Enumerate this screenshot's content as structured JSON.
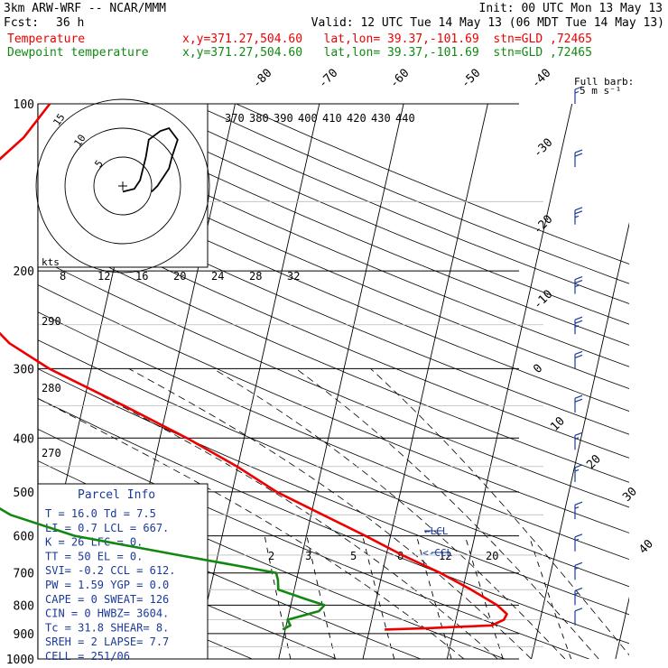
{
  "header": {
    "model": "3km ARW-WRF -- NCAR/MMM",
    "init": "Init: 00 UTC Mon 13 May 13",
    "fcst_label": "Fcst:",
    "fcst_value": "36 h",
    "valid": "Valid: 12 UTC Tue 14 May 13 (06 MDT Tue 14 May 13)",
    "temp_label": "Temperature",
    "dew_label": "Dewpoint temperature",
    "loc_temp": "x,y=371.27,504.60   lat,lon= 39.37,-101.69  stn=GLD ,72465",
    "loc_dew": "x,y=371.27,504.60   lat,lon= 39.37,-101.69  stn=GLD ,72465"
  },
  "colors": {
    "temperature": "#ee0000",
    "dewpoint": "#118811",
    "frame": "#000000"
  },
  "barb_key": {
    "line1": "Full barb:",
    "line2": "5 m s⁻¹"
  },
  "hodograph": {
    "units": "kts",
    "ring_labels": [
      "5",
      "10",
      "15"
    ]
  },
  "adiabat_labels": [
    "290",
    "280",
    "270"
  ],
  "mixing_ratio_labels": [
    "2",
    "3",
    "5",
    "8",
    "12",
    "20"
  ],
  "lcl_label": "←LCL",
  "ccl_label": "<-CCL",
  "parcel_title": "Parcel Info",
  "parcel_info": [
    "T  =   16.0 Td =   7.5",
    "LI =    0.7 LCL =  667.",
    "K  =     26 LFC =    0.",
    "TT =     50 EL  =    0.",
    "SVI=   -0.2 CCL =  612.",
    "PW =   1.59 YGP =   0.0",
    "CAPE =    0 SWEAT=  126",
    "CIN =     0 HWBZ= 3604.",
    "Tc =   31.8 SHEAR=   8.",
    "SREH =    2 LAPSE=  7.7",
    "CELL = 251/06"
  ],
  "chart_data": {
    "type": "line",
    "title": "",
    "xlabel": "",
    "ylabel": "",
    "pressure_ticks": [
      100,
      200,
      300,
      400,
      500,
      600,
      700,
      800,
      900,
      1000
    ],
    "temp_ticks": [
      -80,
      -70,
      -60,
      -50,
      -40,
      -30,
      -20,
      -10,
      0,
      10,
      20,
      30,
      40
    ],
    "theta_e_ticks": [
      370,
      380,
      390,
      400,
      410,
      420,
      430,
      440
    ],
    "upper_temp_ticks": [
      8,
      12,
      16,
      20,
      24,
      28,
      32
    ],
    "series": [
      {
        "name": "Temperature",
        "points": [
          [
            100,
            -52.0
          ],
          [
            115,
            -54.2
          ],
          [
            130,
            -57.3
          ],
          [
            150,
            -62.1
          ],
          [
            175,
            -63.6
          ],
          [
            195,
            -60.9
          ],
          [
            230,
            -55.9
          ],
          [
            270,
            -50.4
          ],
          [
            300,
            -45.0
          ],
          [
            350,
            -35.1
          ],
          [
            400,
            -26.8
          ],
          [
            450,
            -20.1
          ],
          [
            500,
            -14.7
          ],
          [
            550,
            -8.6
          ],
          [
            600,
            -3.0
          ],
          [
            650,
            1.9
          ],
          [
            700,
            6.9
          ],
          [
            750,
            11.0
          ],
          [
            800,
            14.5
          ],
          [
            830,
            15.9
          ],
          [
            850,
            15.7
          ],
          [
            870,
            14.4
          ],
          [
            880,
            6.8
          ],
          [
            885,
            1.8
          ]
        ]
      },
      {
        "name": "Dewpoint temperature",
        "points": [
          [
            100,
            -70.2
          ],
          [
            120,
            -76.2
          ],
          [
            140,
            -80.7
          ],
          [
            160,
            -84.0
          ],
          [
            190,
            -81.3
          ],
          [
            230,
            -74.5
          ],
          [
            280,
            -69.4
          ],
          [
            320,
            -67.2
          ],
          [
            360,
            -61.9
          ],
          [
            400,
            -55.1
          ],
          [
            450,
            -52.1
          ],
          [
            500,
            -50.9
          ],
          [
            550,
            -45.7
          ],
          [
            600,
            -37.5
          ],
          [
            650,
            -24.7
          ],
          [
            680,
            -17.2
          ],
          [
            700,
            -12.6
          ],
          [
            720,
            -12.2
          ],
          [
            750,
            -11.9
          ],
          [
            780,
            -8.4
          ],
          [
            800,
            -6.0
          ],
          [
            820,
            -6.5
          ],
          [
            850,
            -10.0
          ],
          [
            870,
            -9.5
          ],
          [
            885,
            -10.3
          ]
        ]
      }
    ],
    "wind_barbs": [
      {
        "p": 100,
        "speed": 15
      },
      {
        "p": 130,
        "speed": 20
      },
      {
        "p": 165,
        "speed": 25
      },
      {
        "p": 220,
        "speed": 25
      },
      {
        "p": 260,
        "speed": 25
      },
      {
        "p": 300,
        "speed": 20
      },
      {
        "p": 360,
        "speed": 20
      },
      {
        "p": 420,
        "speed": 15
      },
      {
        "p": 480,
        "speed": 15
      },
      {
        "p": 560,
        "speed": 15
      },
      {
        "p": 640,
        "speed": 15
      },
      {
        "p": 720,
        "speed": 15
      },
      {
        "p": 800,
        "speed": 15
      },
      {
        "p": 870,
        "speed": 10
      }
    ],
    "hodograph_trace": [
      [
        0.0,
        -0.2
      ],
      [
        0.4,
        -0.1
      ],
      [
        0.6,
        0.2
      ],
      [
        0.7,
        0.6
      ],
      [
        0.8,
        1.0
      ],
      [
        0.9,
        1.6
      ],
      [
        1.3,
        1.9
      ],
      [
        1.6,
        2.0
      ],
      [
        1.9,
        1.6
      ],
      [
        1.7,
        1.0
      ],
      [
        1.6,
        0.6
      ],
      [
        1.4,
        0.3
      ],
      [
        1.2,
        0.0
      ],
      [
        1.0,
        -0.2
      ]
    ]
  }
}
